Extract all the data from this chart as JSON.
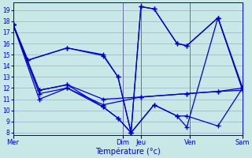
{
  "bg_color": "#c8e8e8",
  "grid_color": "#9999bb",
  "line_color": "#0000cc",
  "vline_color": "#333399",
  "xlabel": "Température (°c)",
  "ylim": [
    7.8,
    19.7
  ],
  "yticks": [
    8,
    9,
    10,
    11,
    12,
    13,
    14,
    15,
    16,
    17,
    18,
    19
  ],
  "xlim": [
    0,
    14
  ],
  "day_positions": [
    0,
    6.7,
    7.8,
    10.8,
    14.0
  ],
  "day_labels": [
    "Mer",
    "Dim",
    "Jeu",
    "Ven",
    "Sam"
  ],
  "lines": [
    {
      "x": [
        0,
        0.9,
        3.3,
        5.5,
        6.4,
        7.2,
        7.8,
        8.6,
        10.0,
        10.6,
        12.5,
        14.0
      ],
      "y": [
        17.7,
        14.5,
        15.6,
        15.0,
        13.0,
        8.0,
        19.3,
        19.1,
        16.0,
        15.8,
        18.3,
        12.0
      ]
    },
    {
      "x": [
        0,
        0.9,
        3.3,
        5.5,
        6.4,
        7.2,
        7.8,
        8.6,
        10.0,
        10.6,
        12.5,
        14.0
      ],
      "y": [
        17.7,
        14.5,
        15.6,
        14.9,
        13.0,
        8.0,
        19.3,
        19.1,
        16.0,
        15.8,
        18.3,
        11.8
      ]
    },
    {
      "x": [
        0,
        1.6,
        3.3,
        5.5,
        7.8,
        10.6,
        12.5,
        14.0
      ],
      "y": [
        17.7,
        11.8,
        12.3,
        11.0,
        11.2,
        11.5,
        11.7,
        12.0
      ]
    },
    {
      "x": [
        0,
        1.6,
        3.3,
        5.5,
        7.8,
        10.6,
        12.5,
        14.0
      ],
      "y": [
        17.7,
        11.5,
        12.0,
        10.5,
        11.2,
        11.5,
        11.7,
        11.8
      ]
    },
    {
      "x": [
        0,
        1.6,
        3.3,
        5.5,
        6.4,
        7.2,
        8.6,
        10.0,
        10.6,
        12.5,
        14.0
      ],
      "y": [
        17.7,
        11.8,
        12.3,
        10.3,
        9.3,
        8.0,
        10.5,
        9.5,
        9.5,
        8.6,
        12.0
      ]
    },
    {
      "x": [
        0,
        1.6,
        3.3,
        5.5,
        6.4,
        7.2,
        8.6,
        10.0,
        10.6,
        12.5,
        14.0
      ],
      "y": [
        17.7,
        11.0,
        12.0,
        10.3,
        9.3,
        8.0,
        10.5,
        9.5,
        8.5,
        18.3,
        12.0
      ]
    }
  ]
}
